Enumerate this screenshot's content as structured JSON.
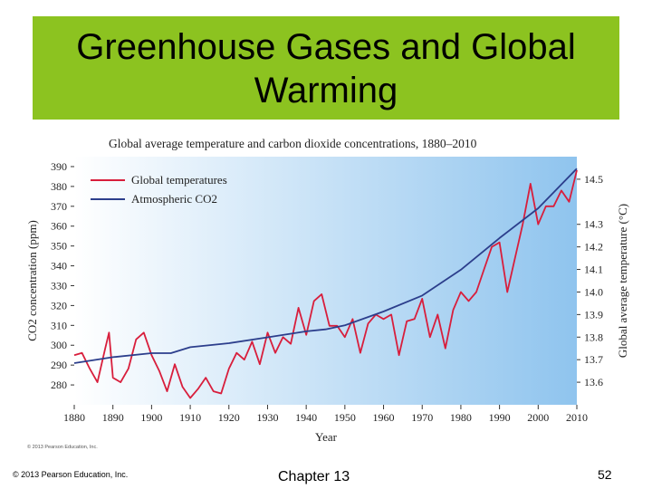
{
  "slide": {
    "title_line1": "Greenhouse Gases and Global",
    "title_line2": "Warming",
    "footer_copyright": "© 2013 Pearson Education, Inc.",
    "footer_chapter": "Chapter 13",
    "page_number": "52"
  },
  "colors": {
    "title_band": "#8cc320",
    "temperature_line": "#d81e3c",
    "co2_line": "#2c3e8c"
  },
  "chart_data": {
    "type": "line",
    "title": "Global average temperature and carbon dioxide concentrations, 1880–2010",
    "xlabel": "Year",
    "ylabel_left": "CO2 concentration (ppm)",
    "ylabel_right": "Global average temperature (°C)",
    "image_credit": "© 2013 Pearson Education, Inc.",
    "xlim": [
      1880,
      2010
    ],
    "ylim_left": [
      270,
      395
    ],
    "ylim_right": [
      13.5,
      14.6
    ],
    "x_ticks": [
      1880,
      1890,
      1900,
      1910,
      1920,
      1930,
      1940,
      1950,
      1960,
      1970,
      1980,
      1990,
      2000,
      2010
    ],
    "y_ticks_left": [
      280,
      290,
      300,
      310,
      320,
      330,
      340,
      350,
      360,
      370,
      380,
      390
    ],
    "y_ticks_right": [
      13.6,
      13.7,
      13.8,
      13.9,
      14.0,
      14.1,
      14.2,
      14.3,
      14.5
    ],
    "y_tick_labels_right": [
      "13.6",
      "13.7",
      "13.8",
      "13.9",
      "14.0",
      "14.1",
      "14.2",
      "14.3",
      "14.5"
    ],
    "legend": [
      "Global temperatures",
      "Atmospheric CO2"
    ],
    "series": [
      {
        "name": "Global temperatures",
        "axis": "right",
        "x": [
          1880,
          1882,
          1884,
          1886,
          1888,
          1889,
          1890,
          1892,
          1894,
          1896,
          1898,
          1900,
          1902,
          1904,
          1906,
          1908,
          1910,
          1912,
          1914,
          1916,
          1918,
          1920,
          1922,
          1924,
          1926,
          1928,
          1930,
          1932,
          1934,
          1936,
          1938,
          1940,
          1942,
          1944,
          1946,
          1948,
          1950,
          1952,
          1954,
          1956,
          1958,
          1960,
          1962,
          1964,
          1966,
          1968,
          1970,
          1972,
          1974,
          1976,
          1978,
          1980,
          1982,
          1984,
          1986,
          1988,
          1990,
          1992,
          1994,
          1996,
          1998,
          2000,
          2002,
          2004,
          2006,
          2008,
          2010
        ],
        "values": [
          13.72,
          13.73,
          13.66,
          13.6,
          13.75,
          13.82,
          13.62,
          13.6,
          13.66,
          13.79,
          13.82,
          13.72,
          13.65,
          13.56,
          13.68,
          13.58,
          13.53,
          13.57,
          13.62,
          13.56,
          13.55,
          13.66,
          13.73,
          13.7,
          13.78,
          13.68,
          13.82,
          13.73,
          13.8,
          13.77,
          13.93,
          13.81,
          13.96,
          13.99,
          13.85,
          13.85,
          13.8,
          13.88,
          13.73,
          13.86,
          13.9,
          13.88,
          13.9,
          13.72,
          13.87,
          13.88,
          13.97,
          13.8,
          13.9,
          13.75,
          13.92,
          14.0,
          13.96,
          14.0,
          14.1,
          14.2,
          14.22,
          14.0,
          14.15,
          14.3,
          14.48,
          14.3,
          14.38,
          14.38,
          14.45,
          14.4,
          14.54
        ]
      },
      {
        "name": "Atmospheric CO2",
        "axis": "left",
        "x": [
          1880,
          1890,
          1900,
          1905,
          1910,
          1920,
          1930,
          1940,
          1945,
          1950,
          1960,
          1970,
          1980,
          1990,
          2000,
          2010
        ],
        "values": [
          291,
          294,
          296,
          296,
          299,
          301,
          304,
          307,
          308,
          310,
          317,
          325,
          338,
          354,
          369,
          389
        ]
      }
    ]
  }
}
